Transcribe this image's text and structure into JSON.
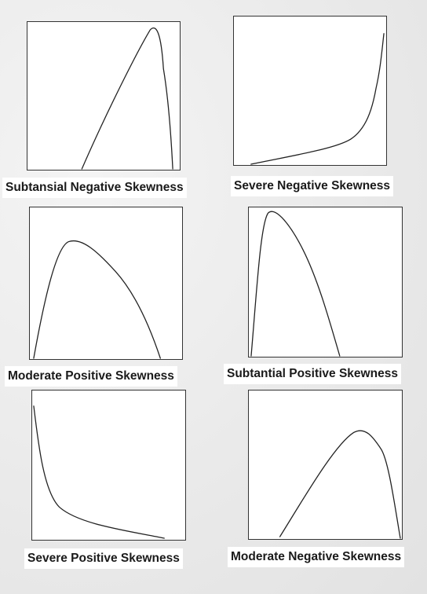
{
  "captions": {
    "p1": "Subtansial Negative Skewness",
    "p2": "Severe Negative Skewness",
    "p3": "Moderate Positive Skewness",
    "p4": "Subtantial Positive Skewness",
    "p5": "Severe Positive Skewness",
    "p6": "Moderate Negative Skewness"
  },
  "colors": {
    "background": "#ececec",
    "panel": "#ffffff",
    "line": "#222222",
    "text": "#1a1a1a"
  }
}
